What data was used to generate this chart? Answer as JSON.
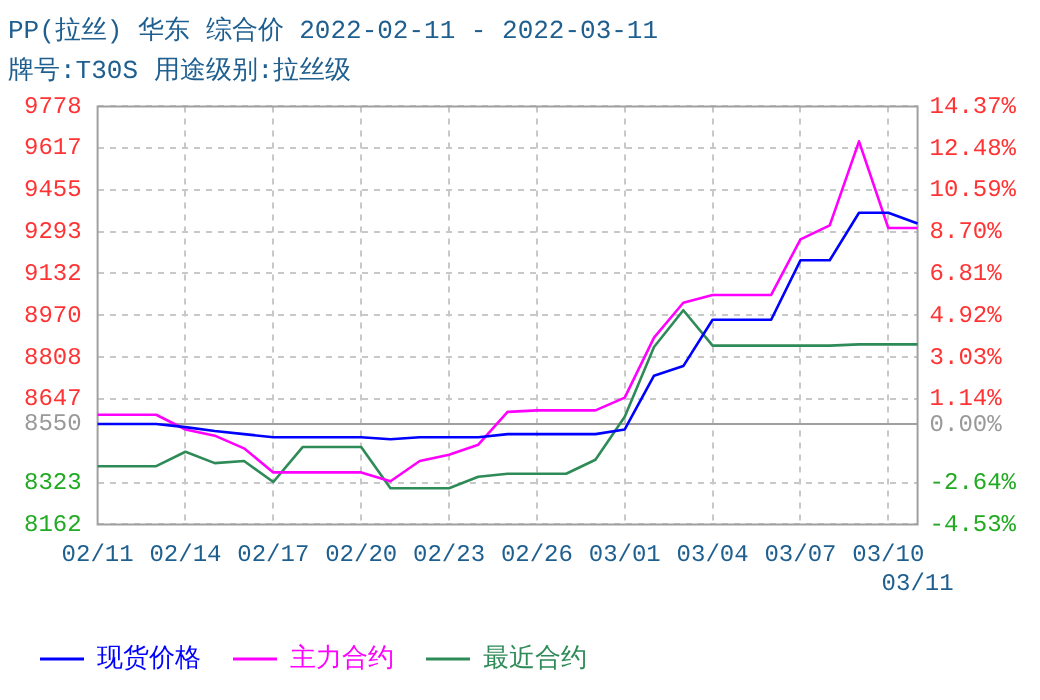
{
  "chart_data": {
    "type": "line",
    "title": "PP(拉丝) 华东 综合价 2022-02-11 - 2022-03-11",
    "subtitle": "牌号:T30S 用途级别:拉丝级",
    "categories": [
      "02/11",
      null,
      null,
      "02/14",
      null,
      null,
      "02/17",
      null,
      null,
      "02/20",
      null,
      null,
      "02/23",
      null,
      null,
      "02/26",
      null,
      null,
      "03/01",
      null,
      null,
      "03/04",
      null,
      null,
      "03/07",
      null,
      null,
      "03/10",
      "03/11"
    ],
    "series": [
      {
        "name": "现货价格",
        "color": "#0000ff",
        "values": [
          8550,
          8550,
          8550,
          8538,
          8523,
          8511,
          8499,
          8499,
          8499,
          8499,
          8491,
          8499,
          8499,
          8499,
          8511,
          8511,
          8511,
          8511,
          8529,
          8737,
          8774,
          8953,
          8953,
          8953,
          9183,
          9183,
          9367,
          9367,
          9325
        ]
      },
      {
        "name": "主力合约",
        "color": "#ff00ff",
        "values": [
          8586,
          8586,
          8586,
          8529,
          8505,
          8456,
          8363,
          8363,
          8363,
          8363,
          8329,
          8407,
          8431,
          8470,
          8597,
          8603,
          8603,
          8603,
          8652,
          8884,
          9019,
          9049,
          9049,
          9049,
          9264,
          9318,
          9643,
          9308,
          9308
        ]
      },
      {
        "name": "最近合约",
        "color": "#2e8b57",
        "values": [
          8387,
          8387,
          8387,
          8443,
          8399,
          8407,
          8326,
          8461,
          8461,
          8461,
          8302,
          8302,
          8302,
          8346,
          8358,
          8358,
          8358,
          8412,
          8578,
          8848,
          8990,
          8853,
          8853,
          8853,
          8853,
          8853,
          8858,
          8858,
          8858
        ]
      }
    ],
    "ylim": [
      8162,
      9778
    ],
    "yticks": [
      8162,
      8323,
      8550,
      8647,
      8808,
      8970,
      9132,
      9293,
      9455,
      9617,
      9778
    ],
    "y2lim": [
      -4.53,
      14.37
    ],
    "y2ticks": [
      {
        "value": -4.53,
        "label": "-4.53%"
      },
      {
        "value": -2.64,
        "label": "-2.64%"
      },
      {
        "value": 0,
        "label": "0.00%"
      },
      {
        "value": 1.14,
        "label": "1.14%"
      },
      {
        "value": 3.03,
        "label": "3.03%"
      },
      {
        "value": 4.92,
        "label": "4.92%"
      },
      {
        "value": 6.81,
        "label": "6.81%"
      },
      {
        "value": 8.7,
        "label": "8.70%"
      },
      {
        "value": 10.59,
        "label": "10.59%"
      },
      {
        "value": 12.48,
        "label": "12.48%"
      },
      {
        "value": 14.37,
        "label": "14.37%"
      }
    ],
    "ref_lines": [
      {
        "axis": "y",
        "value": 8550,
        "color": "#a0a0a0"
      }
    ],
    "grid": true,
    "legend": "bottom",
    "marker": "none",
    "line_style": "solid"
  }
}
